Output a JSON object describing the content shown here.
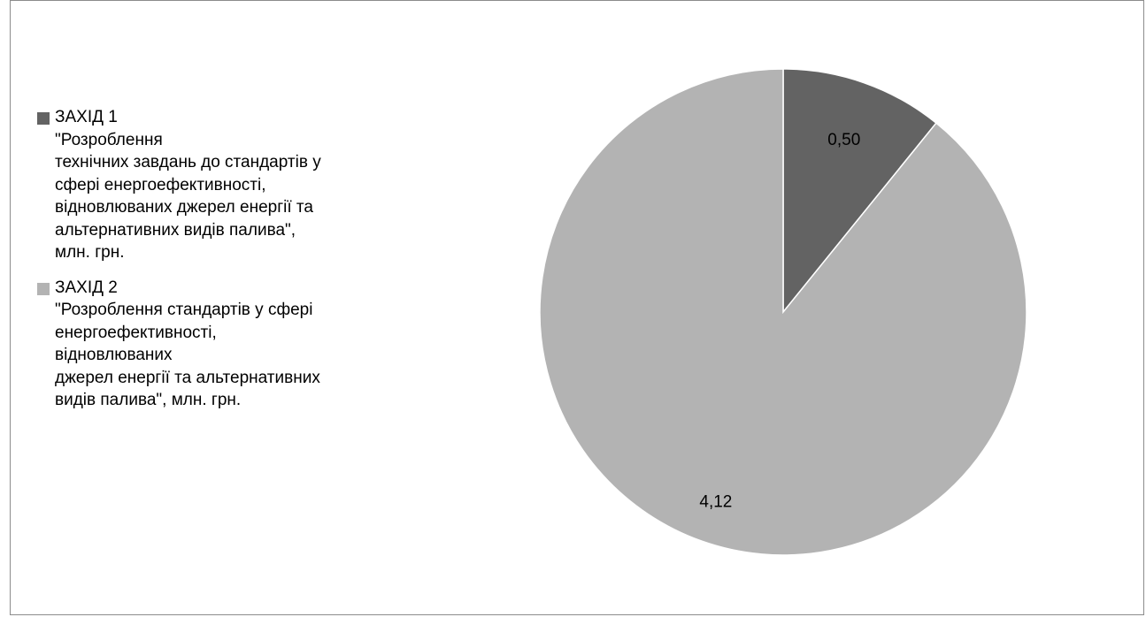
{
  "chart_data": {
    "type": "pie",
    "title": "",
    "legend_position": "left",
    "slices": [
      {
        "value": 0.5,
        "label": "0,50",
        "color": "#636363",
        "legend_lines": [
          "ЗАХІД 1",
          "\"Розроблення",
          "технічних завдань до стандартів у",
          "сфері енергоефективності,",
          "відновлюваних джерел енергії та",
          "альтернативних видів палива\",",
          "млн. грн."
        ]
      },
      {
        "value": 4.12,
        "label": "4,12",
        "color": "#b3b3b3",
        "legend_lines": [
          "ЗАХІД 2",
          "\"Розроблення стандартів у сфері",
          "енергоефективності,",
          "відновлюваних",
          "джерел енергії та альтернативних",
          "видів палива\", млн. грн."
        ]
      }
    ]
  }
}
